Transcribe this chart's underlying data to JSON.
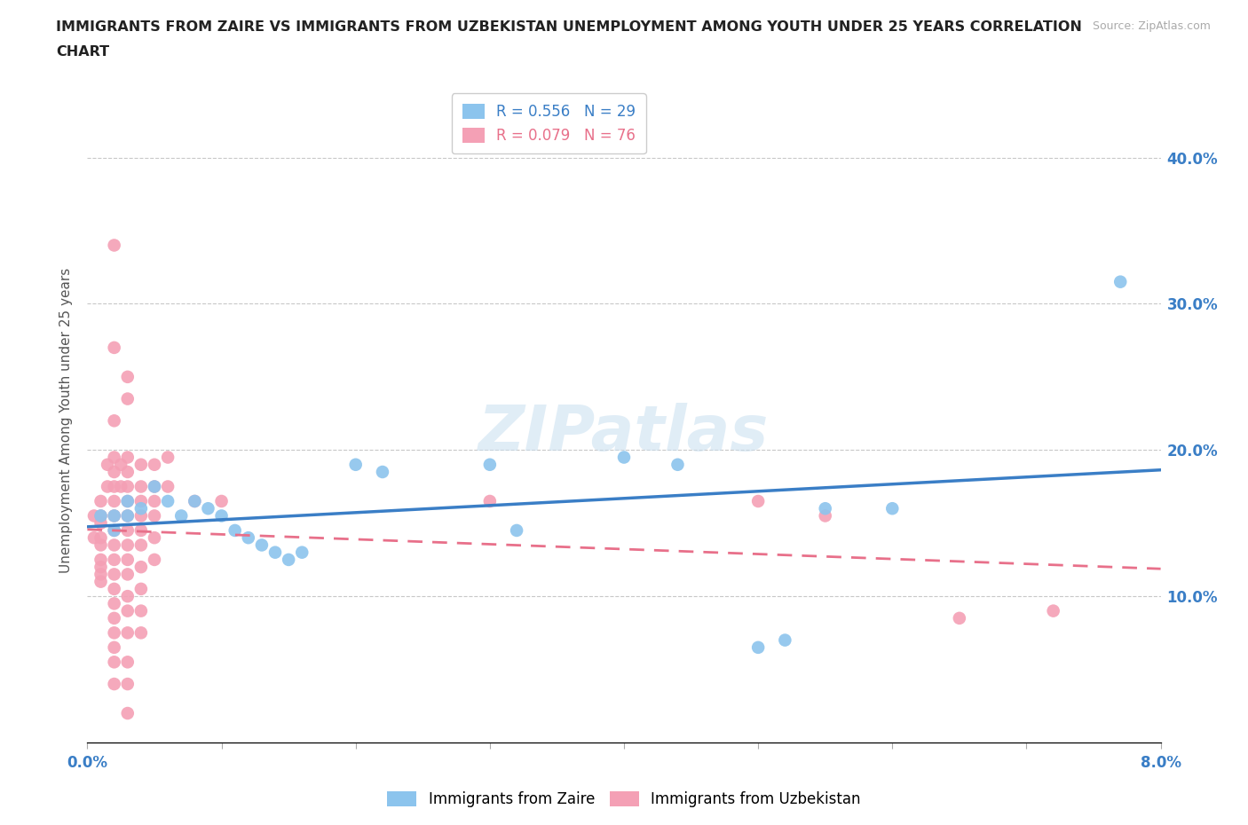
{
  "title_line1": "IMMIGRANTS FROM ZAIRE VS IMMIGRANTS FROM UZBEKISTAN UNEMPLOYMENT AMONG YOUTH UNDER 25 YEARS CORRELATION",
  "title_line2": "CHART",
  "source_text": "Source: ZipAtlas.com",
  "ylabel": "Unemployment Among Youth under 25 years",
  "xlim": [
    0.0,
    0.08
  ],
  "ylim": [
    0.0,
    0.44
  ],
  "watermark": "ZIPatlas",
  "zaire_color": "#8CC4ED",
  "uzbekistan_color": "#F4A0B5",
  "zaire_line_color": "#3A7EC6",
  "uzbekistan_line_color": "#E8708A",
  "zaire_R": 0.556,
  "zaire_N": 29,
  "uzbekistan_R": 0.079,
  "uzbekistan_N": 76,
  "zaire_points": [
    [
      0.001,
      0.155
    ],
    [
      0.002,
      0.155
    ],
    [
      0.002,
      0.145
    ],
    [
      0.003,
      0.165
    ],
    [
      0.003,
      0.155
    ],
    [
      0.004,
      0.16
    ],
    [
      0.005,
      0.175
    ],
    [
      0.006,
      0.165
    ],
    [
      0.007,
      0.155
    ],
    [
      0.008,
      0.165
    ],
    [
      0.009,
      0.16
    ],
    [
      0.01,
      0.155
    ],
    [
      0.011,
      0.145
    ],
    [
      0.012,
      0.14
    ],
    [
      0.013,
      0.135
    ],
    [
      0.014,
      0.13
    ],
    [
      0.015,
      0.125
    ],
    [
      0.016,
      0.13
    ],
    [
      0.02,
      0.19
    ],
    [
      0.022,
      0.185
    ],
    [
      0.03,
      0.19
    ],
    [
      0.032,
      0.145
    ],
    [
      0.04,
      0.195
    ],
    [
      0.044,
      0.19
    ],
    [
      0.05,
      0.065
    ],
    [
      0.052,
      0.07
    ],
    [
      0.055,
      0.16
    ],
    [
      0.06,
      0.16
    ],
    [
      0.077,
      0.315
    ]
  ],
  "uzbekistan_points": [
    [
      0.0005,
      0.155
    ],
    [
      0.0005,
      0.14
    ],
    [
      0.001,
      0.165
    ],
    [
      0.001,
      0.155
    ],
    [
      0.001,
      0.15
    ],
    [
      0.001,
      0.14
    ],
    [
      0.001,
      0.135
    ],
    [
      0.001,
      0.125
    ],
    [
      0.001,
      0.12
    ],
    [
      0.001,
      0.115
    ],
    [
      0.001,
      0.11
    ],
    [
      0.0015,
      0.19
    ],
    [
      0.0015,
      0.175
    ],
    [
      0.002,
      0.34
    ],
    [
      0.002,
      0.27
    ],
    [
      0.002,
      0.22
    ],
    [
      0.002,
      0.195
    ],
    [
      0.002,
      0.185
    ],
    [
      0.002,
      0.175
    ],
    [
      0.002,
      0.165
    ],
    [
      0.002,
      0.155
    ],
    [
      0.002,
      0.145
    ],
    [
      0.002,
      0.135
    ],
    [
      0.002,
      0.125
    ],
    [
      0.002,
      0.115
    ],
    [
      0.002,
      0.105
    ],
    [
      0.002,
      0.095
    ],
    [
      0.002,
      0.085
    ],
    [
      0.002,
      0.075
    ],
    [
      0.002,
      0.065
    ],
    [
      0.002,
      0.055
    ],
    [
      0.002,
      0.04
    ],
    [
      0.0025,
      0.19
    ],
    [
      0.0025,
      0.175
    ],
    [
      0.003,
      0.25
    ],
    [
      0.003,
      0.235
    ],
    [
      0.003,
      0.195
    ],
    [
      0.003,
      0.185
    ],
    [
      0.003,
      0.175
    ],
    [
      0.003,
      0.165
    ],
    [
      0.003,
      0.155
    ],
    [
      0.003,
      0.145
    ],
    [
      0.003,
      0.135
    ],
    [
      0.003,
      0.125
    ],
    [
      0.003,
      0.115
    ],
    [
      0.003,
      0.1
    ],
    [
      0.003,
      0.09
    ],
    [
      0.003,
      0.075
    ],
    [
      0.003,
      0.055
    ],
    [
      0.003,
      0.04
    ],
    [
      0.003,
      0.02
    ],
    [
      0.004,
      0.19
    ],
    [
      0.004,
      0.175
    ],
    [
      0.004,
      0.165
    ],
    [
      0.004,
      0.155
    ],
    [
      0.004,
      0.145
    ],
    [
      0.004,
      0.135
    ],
    [
      0.004,
      0.12
    ],
    [
      0.004,
      0.105
    ],
    [
      0.004,
      0.09
    ],
    [
      0.004,
      0.075
    ],
    [
      0.005,
      0.19
    ],
    [
      0.005,
      0.175
    ],
    [
      0.005,
      0.165
    ],
    [
      0.005,
      0.155
    ],
    [
      0.005,
      0.14
    ],
    [
      0.005,
      0.125
    ],
    [
      0.006,
      0.195
    ],
    [
      0.006,
      0.175
    ],
    [
      0.008,
      0.165
    ],
    [
      0.01,
      0.165
    ],
    [
      0.03,
      0.165
    ],
    [
      0.05,
      0.165
    ],
    [
      0.055,
      0.155
    ],
    [
      0.065,
      0.085
    ],
    [
      0.072,
      0.09
    ]
  ]
}
